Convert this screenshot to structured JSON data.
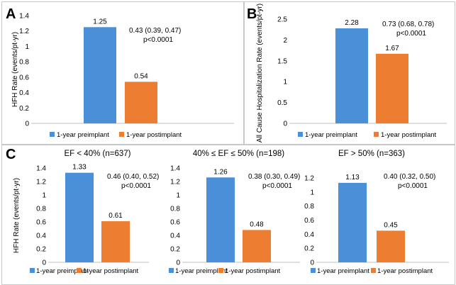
{
  "panels": {
    "a": "A",
    "b": "B",
    "c": "C"
  },
  "colors": {
    "preimplant": "#4a90d9",
    "postimplant": "#ed7d31",
    "axis": "#bfbfbf"
  },
  "chart_data": [
    {
      "type": "bar",
      "title": "",
      "ylabel": "HFH Rate (events/pt-yr)",
      "ylim": [
        0,
        1.4
      ],
      "yticks": [
        "0",
        "0.2",
        "0.4",
        "0.6",
        "0.8",
        "1",
        "1.2",
        "1.4"
      ],
      "series": [
        {
          "name": "1-year preimplant",
          "value": 1.25,
          "label": "1.25"
        },
        {
          "name": "1-year postimplant",
          "value": 0.54,
          "label": "0.54"
        }
      ],
      "annotation": [
        "0.43 (0.39, 0.47)",
        "p<0.0001"
      ],
      "legend": "bottom"
    },
    {
      "type": "bar",
      "title": "",
      "ylabel": "All Cause Hospitalization Rate (events/pt-yr)",
      "ylim": [
        0,
        2.5
      ],
      "yticks": [
        "0",
        "0.5",
        "1",
        "1.5",
        "2",
        "2.5"
      ],
      "series": [
        {
          "name": "1-year preimplant",
          "value": 2.28,
          "label": "2.28"
        },
        {
          "name": "1-year postimplant",
          "value": 1.67,
          "label": "1.67"
        }
      ],
      "annotation": [
        "0.73 (0.68, 0.78)",
        "p<0.0001"
      ],
      "legend": "bottom"
    },
    {
      "type": "bar",
      "title": "EF < 40% (n=637)",
      "ylabel": "HFH Rate (events/pt-yr)",
      "ylim": [
        0,
        1.4
      ],
      "yticks": [
        "0",
        "0.2",
        "0.4",
        "0.6",
        "0.8",
        "1",
        "1.2",
        "1.4"
      ],
      "series": [
        {
          "name": "1-year preimplant",
          "value": 1.33,
          "label": "1.33"
        },
        {
          "name": "1-year postimplant",
          "value": 0.61,
          "label": "0.61"
        }
      ],
      "annotation": [
        "0.46 (0.40, 0.52)",
        "p<0.0001"
      ],
      "legend": "bottom"
    },
    {
      "type": "bar",
      "title": "40% ≤ EF ≤ 50% (n=198)",
      "ylabel": "",
      "ylim": [
        0,
        1.4
      ],
      "yticks": [
        "0",
        "0.2",
        "0.4",
        "0.6",
        "0.8",
        "1",
        "1.2",
        "1.4"
      ],
      "series": [
        {
          "name": "1-year preimplant",
          "value": 1.26,
          "label": "1.26"
        },
        {
          "name": "1-year postimplant",
          "value": 0.48,
          "label": "0.48"
        }
      ],
      "annotation": [
        "0.38 (0.30, 0.49)",
        "p<0.0001"
      ],
      "legend": "bottom"
    },
    {
      "type": "bar",
      "title": "EF > 50% (n=363)",
      "ylabel": "",
      "ylim": [
        0,
        1.2
      ],
      "yticks": [
        "0",
        "0.2",
        "0.4",
        "0.6",
        "0.8",
        "1",
        "1.2"
      ],
      "series": [
        {
          "name": "1-year preimplant",
          "value": 1.13,
          "label": "1.13"
        },
        {
          "name": "1-year postimplant",
          "value": 0.45,
          "label": "0.45"
        }
      ],
      "annotation": [
        "0.40 (0.32, 0.50)",
        "p<0.0001"
      ],
      "legend": "bottom"
    }
  ]
}
